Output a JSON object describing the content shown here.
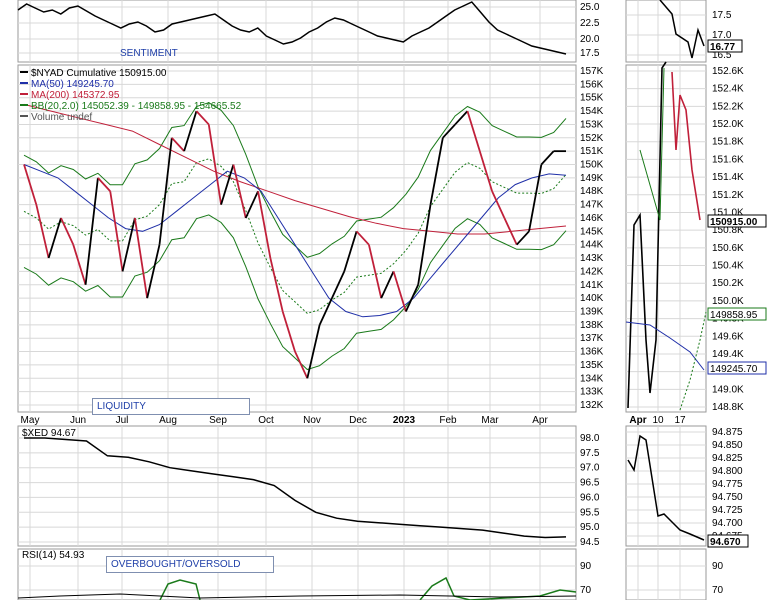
{
  "chart_data": [
    {
      "type": "line",
      "panel": "sentiment",
      "label": "SENTIMENT",
      "y_ticks": [
        "25.0",
        "22.5",
        "20.0",
        "17.5"
      ],
      "side_ticks": [
        "17.5",
        "17.0",
        "16.5"
      ],
      "side_last": "16.77"
    },
    {
      "type": "line",
      "panel": "nyad",
      "title_line": "$NYAD Cumulative 150915.00",
      "legend": [
        {
          "text": "$NYAD Cumulative 150915.00",
          "color": "#000000"
        },
        {
          "text": "MA(50) 149245.70",
          "color": "#1f2fa8"
        },
        {
          "text": "MA(200) 145372.95",
          "color": "#c0203a"
        },
        {
          "text": "BB(20,2.0) 145052.39 - 149858.95 - 154665.52",
          "color": "#1a7a1a"
        },
        {
          "text": "Volume undef",
          "color": "#555555"
        }
      ],
      "label": "LIQUIDITY",
      "x_labels": [
        "May",
        "Jun",
        "Jul",
        "Aug",
        "Sep",
        "Oct",
        "Nov",
        "Dec",
        "2023",
        "Feb",
        "Mar",
        "Apr"
      ],
      "ylim": [
        132,
        157
      ],
      "y_ticks": [
        "157K",
        "156K",
        "155K",
        "154K",
        "153K",
        "152K",
        "151K",
        "150K",
        "149K",
        "148K",
        "147K",
        "146K",
        "145K",
        "144K",
        "143K",
        "142K",
        "141K",
        "140K",
        "139K",
        "138K",
        "137K",
        "136K",
        "135K",
        "134K",
        "133K",
        "132K"
      ],
      "series": [
        {
          "name": "$NYAD Cumulative",
          "color": "#000000",
          "values": [
            150,
            147,
            143,
            146,
            144,
            141,
            149,
            148,
            142,
            146,
            140,
            144,
            152,
            151,
            154,
            153,
            147,
            150,
            146,
            148,
            143,
            139,
            136,
            134,
            138,
            140,
            142,
            145,
            144,
            140,
            142,
            139,
            141,
            147,
            152,
            153,
            154,
            151,
            148,
            146,
            144,
            145,
            150,
            151,
            151
          ]
        },
        {
          "name": "MA(50)",
          "color": "#1f2fa8",
          "values": [
            150,
            149.5,
            149,
            148,
            147,
            146,
            145.2,
            145,
            145.5,
            146.5,
            147.5,
            148.5,
            149.5,
            149,
            148,
            146,
            144,
            142,
            140,
            139,
            138.6,
            138.7,
            139,
            140,
            141.5,
            143,
            144.5,
            146,
            147.5,
            148.5,
            149,
            149.3,
            149.2
          ]
        },
        {
          "name": "MA(200)",
          "color": "#c0203a",
          "values": [
            154.5,
            154,
            153.5,
            153,
            152.5,
            151.5,
            150.5,
            149.5,
            148.7,
            148,
            147.3,
            146.7,
            146.1,
            145.6,
            145.2,
            145,
            144.8,
            144.8,
            145,
            145.2,
            145.4
          ]
        }
      ]
    },
    {
      "type": "line",
      "panel": "xed",
      "legend": "$XED 94.67",
      "ylim": [
        94.5,
        98.0
      ],
      "y_ticks": [
        "98.0",
        "97.5",
        "97.0",
        "96.5",
        "96.0",
        "95.5",
        "95.0",
        "94.5"
      ],
      "side_ticks": [
        "94.875",
        "94.850",
        "94.825",
        "94.800",
        "94.775",
        "94.750",
        "94.725",
        "94.700",
        "94.675"
      ],
      "side_last": "94.670",
      "values": [
        98.0,
        98.0,
        97.95,
        97.9,
        97.4,
        97.35,
        97.2,
        97.0,
        96.9,
        96.8,
        96.7,
        96.6,
        96.4,
        95.9,
        95.5,
        95.3,
        95.2,
        95.15,
        95.1,
        95.05,
        95.0,
        94.95,
        94.9,
        94.8,
        94.7,
        94.65,
        94.67
      ]
    },
    {
      "type": "line",
      "panel": "rsi",
      "legend": "RSI(14) 54.93",
      "label": "OVERBOUGHT/OVERSOLD",
      "y_ticks": [
        "90",
        "70"
      ]
    }
  ],
  "side_panel": {
    "x_labels": [
      "Apr",
      "10",
      "17"
    ],
    "nyad_ticks": [
      "152.6K",
      "152.4K",
      "152.2K",
      "152.0K",
      "151.8K",
      "151.6K",
      "151.4K",
      "151.2K",
      "151.0K",
      "150.8K",
      "150.6K",
      "150.4K",
      "150.2K",
      "150.0K",
      "149.8K",
      "149.6K",
      "149.4K",
      "149.2K",
      "149.0K",
      "148.8K"
    ],
    "nyad_last": "150915.00",
    "bb_mid": "149858.95",
    "ma50": "149245.70",
    "rsi_ticks": [
      "90",
      "70"
    ]
  },
  "colors": {
    "price": "#000000",
    "ma50": "#1f2fa8",
    "ma200": "#c0203a",
    "bb": "#1a7a1a",
    "down": "#c0203a",
    "grid": "#d8d8d8",
    "label": "#1f3fa8"
  }
}
